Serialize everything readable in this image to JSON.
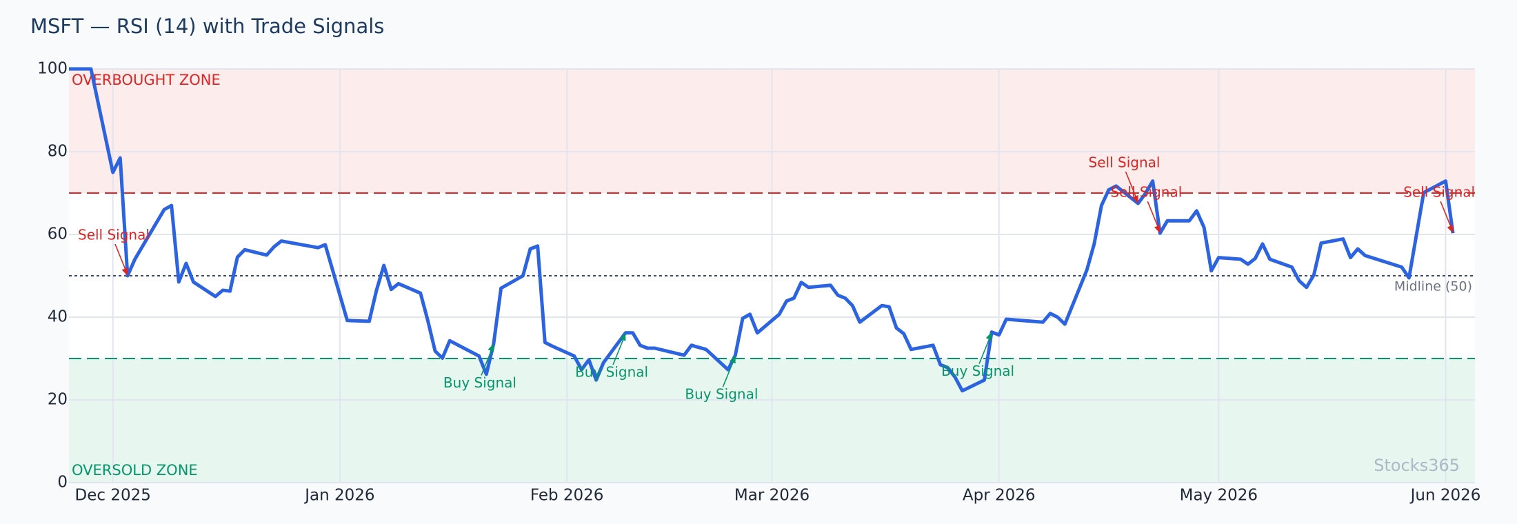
{
  "chart_data": {
    "type": "line",
    "title": "MSFT — RSI (14) with Trade Signals",
    "x": [
      -6,
      -3,
      0,
      1,
      2,
      3,
      7,
      8,
      9,
      10,
      11,
      14,
      15,
      16,
      17,
      18,
      21,
      22,
      23,
      28,
      29,
      32,
      35,
      36,
      37,
      38,
      39,
      42,
      43,
      44,
      45,
      46,
      50,
      51,
      52,
      53,
      56,
      57,
      58,
      59,
      60,
      63,
      64,
      65,
      66,
      67,
      70,
      71,
      72,
      73,
      74,
      78,
      79,
      81,
      84,
      85,
      86,
      87,
      88,
      91,
      92,
      93,
      94,
      95,
      98,
      99,
      100,
      101,
      102,
      105,
      106,
      107,
      108,
      109,
      112,
      113,
      114,
      115,
      116,
      119,
      120,
      121,
      122,
      127,
      128,
      129,
      130,
      133,
      134,
      135,
      136,
      137,
      140,
      141,
      142,
      143,
      144,
      147,
      148,
      149,
      150,
      151,
      154,
      155,
      156,
      157,
      158,
      161,
      162,
      163,
      164,
      165,
      168,
      169,
      170,
      171,
      176,
      177,
      179,
      182,
      183
    ],
    "values": [
      100,
      100,
      75,
      78.5,
      50,
      54,
      66,
      67,
      48.5,
      53,
      48.5,
      45,
      46.5,
      46.3,
      54.5,
      56.3,
      55,
      57,
      58.4,
      56.8,
      57.5,
      39.2,
      39,
      46.5,
      52.5,
      46.7,
      48.1,
      45.8,
      39.2,
      31.8,
      30.1,
      34.3,
      30.6,
      26.2,
      33.6,
      47,
      50,
      56.5,
      57.2,
      33.9,
      33,
      30.6,
      27.3,
      29.7,
      24.8,
      29,
      36.2,
      36.2,
      33.2,
      32.5,
      32.5,
      30.8,
      33.2,
      32.2,
      27.3,
      30.8,
      39.7,
      40.7,
      36.2,
      40.7,
      43.9,
      44.6,
      48.4,
      47.2,
      47.7,
      45.3,
      44.6,
      42.8,
      38.8,
      42.8,
      42.5,
      37.4,
      36,
      32.2,
      33.2,
      28.5,
      27.8,
      25.5,
      22.2,
      24.8,
      36.4,
      35.7,
      39.5,
      38.8,
      40.9,
      40,
      38.3,
      51.4,
      57.7,
      67,
      70.8,
      71.7,
      67.5,
      69.9,
      72.9,
      60.3,
      63.3,
      63.3,
      65.7,
      61.7,
      51.2,
      54.4,
      54,
      52.8,
      54.2,
      57.7,
      54,
      52.1,
      48.8,
      47.2,
      50.2,
      57.9,
      58.9,
      54.4,
      56.5,
      54.9,
      52.1,
      49.5,
      70.1,
      72.9,
      60.3
    ],
    "color": "#2b63e0",
    "xlim": [
      -6,
      186
    ],
    "xticks": [
      {
        "value": 0,
        "label": "Dec 2025"
      },
      {
        "value": 31,
        "label": "Jan 2026"
      },
      {
        "value": 62,
        "label": "Feb 2026"
      },
      {
        "value": 90,
        "label": "Mar 2026"
      },
      {
        "value": 121,
        "label": "Apr 2026"
      },
      {
        "value": 151,
        "label": "May 2026"
      },
      {
        "value": 182,
        "label": "Jun 2026"
      }
    ],
    "ylim": [
      0,
      100
    ],
    "yticks": [
      0,
      20,
      40,
      60,
      80,
      100
    ],
    "grid": true,
    "zones": [
      {
        "label": "OVERBOUGHT ZONE",
        "from": 70,
        "to": 100,
        "color": "#fcecec",
        "text_color": "#dc2626",
        "position": "top"
      },
      {
        "label": "OVERSOLD ZONE",
        "from": 0,
        "to": 30,
        "color": "#e8f6f0",
        "text_color": "#059669",
        "position": "bottom"
      }
    ],
    "thresholds": [
      {
        "value": 70,
        "color": "#dc2626",
        "style": "dashed"
      },
      {
        "value": 30,
        "color": "#059669",
        "style": "dashed"
      },
      {
        "value": 50,
        "color": "#3b4a7a",
        "style": "dotted",
        "label": "Midline (50)",
        "label_color": "#6b7280"
      }
    ],
    "annotations": [
      {
        "text": "Sell Signal",
        "x": 2,
        "y": 50,
        "color": "#dc2626",
        "position": "above"
      },
      {
        "text": "Buy Signal",
        "x": 52,
        "y": 33.6,
        "color": "#059669",
        "position": "below"
      },
      {
        "text": "Buy Signal",
        "x": 70,
        "y": 36.2,
        "color": "#059669",
        "position": "below"
      },
      {
        "text": "Buy Signal",
        "x": 85,
        "y": 30.8,
        "color": "#059669",
        "position": "below"
      },
      {
        "text": "Buy Signal",
        "x": 120,
        "y": 36.4,
        "color": "#059669",
        "position": "below"
      },
      {
        "text": "Sell Signal",
        "x": 140,
        "y": 67.5,
        "color": "#dc2626",
        "position": "above"
      },
      {
        "text": "Sell Signal",
        "x": 143,
        "y": 60.3,
        "color": "#dc2626",
        "position": "above"
      },
      {
        "text": "Sell Signal",
        "x": 183,
        "y": 60.3,
        "color": "#dc2626",
        "position": "above"
      }
    ],
    "watermark": "Stocks365"
  }
}
